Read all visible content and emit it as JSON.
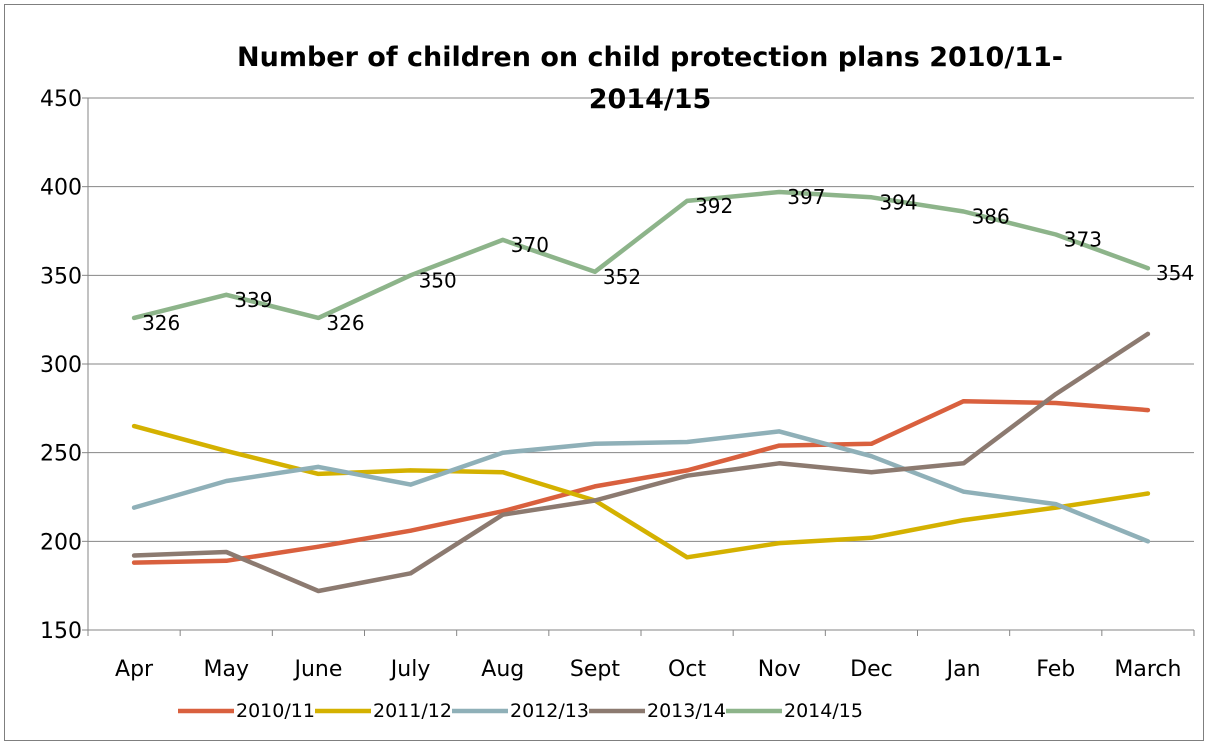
{
  "chart_data": {
    "type": "line",
    "title_lines": [
      "Number of children on child protection plans 2010/11-",
      "2014/15"
    ],
    "xlabel": "",
    "ylabel": "",
    "categories": [
      "Apr",
      "May",
      "June",
      "July",
      "Aug",
      "Sept",
      "Oct",
      "Nov",
      "Dec",
      "Jan",
      "Feb",
      "March"
    ],
    "ylim": [
      150,
      450
    ],
    "yticks": [
      150,
      200,
      250,
      300,
      350,
      400,
      450
    ],
    "grid": "horizontal",
    "legend_position": "bottom",
    "series": [
      {
        "name": "2010/11",
        "color": "#D9603E",
        "values": [
          188,
          189,
          197,
          206,
          217,
          231,
          240,
          254,
          255,
          279,
          278,
          274
        ],
        "data_labels": false
      },
      {
        "name": "2011/12",
        "color": "#D4B100",
        "values": [
          265,
          251,
          238,
          240,
          239,
          223,
          191,
          199,
          202,
          212,
          219,
          227
        ],
        "data_labels": false
      },
      {
        "name": "2012/13",
        "color": "#8FB0B8",
        "values": [
          219,
          234,
          242,
          232,
          250,
          255,
          256,
          262,
          248,
          228,
          221,
          200
        ],
        "data_labels": false
      },
      {
        "name": "2013/14",
        "color": "#8C7A70",
        "values": [
          192,
          194,
          172,
          182,
          215,
          223,
          237,
          244,
          239,
          244,
          283,
          317
        ],
        "data_labels": false
      },
      {
        "name": "2014/15",
        "color": "#8DB48A",
        "values": [
          326,
          339,
          326,
          350,
          370,
          352,
          392,
          397,
          394,
          386,
          373,
          354
        ],
        "data_labels": true
      }
    ]
  }
}
